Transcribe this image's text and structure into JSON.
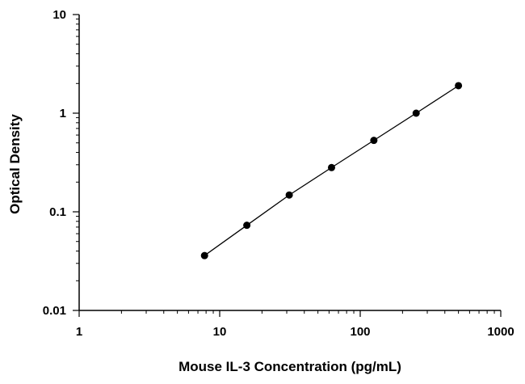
{
  "chart_data": {
    "type": "scatter",
    "title": "",
    "xlabel": "Mouse IL-3 Concentration (pg/mL)",
    "ylabel": "Optical Density",
    "xscale": "log",
    "yscale": "log",
    "xlim": [
      1,
      1000
    ],
    "ylim": [
      0.01,
      10
    ],
    "x_ticks": [
      "1",
      "10",
      "100",
      "1000"
    ],
    "y_ticks": [
      "0.01",
      "0.1",
      "1",
      "10"
    ],
    "grid": false,
    "legend": "none",
    "fit_line": true,
    "marker_color": "#000000",
    "line_color": "#000000",
    "series": [
      {
        "x": [
          7.8,
          15.6,
          31.25,
          62.5,
          125,
          250,
          500
        ],
        "y": [
          0.036,
          0.073,
          0.148,
          0.281,
          0.53,
          1.0,
          1.9
        ]
      }
    ]
  }
}
